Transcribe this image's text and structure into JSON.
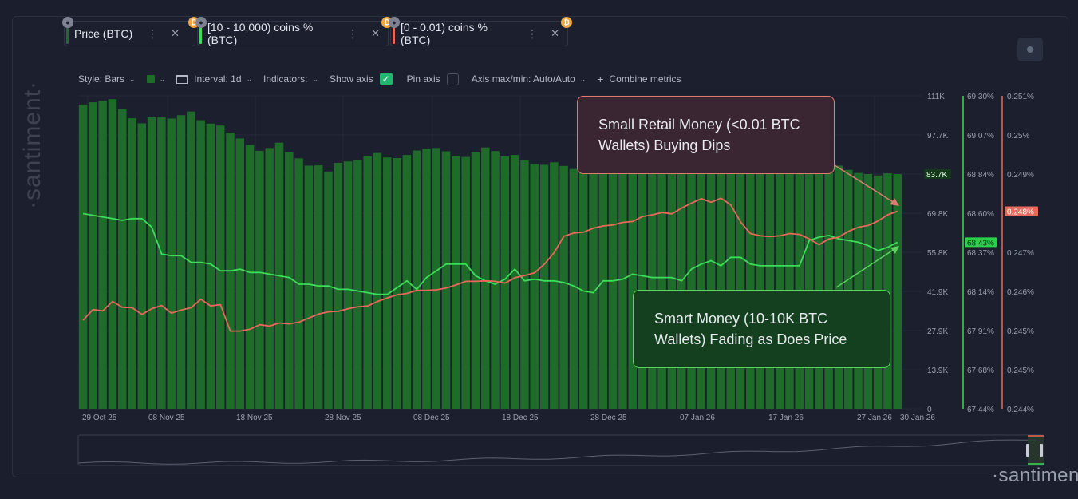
{
  "tabs": [
    {
      "label": "Price (BTC)",
      "bar_color": "#1e6b2a",
      "lock": "●",
      "coin": "₿",
      "menu": "⋮",
      "close": "✕"
    },
    {
      "label": "[10 - 10,000) coins % (BTC)",
      "bar_color": "#3ddc5a",
      "lock": "●",
      "coin": "₿",
      "menu": "⋮",
      "close": "✕"
    },
    {
      "label": "[0 - 0.01) coins % (BTC)",
      "bar_color": "#e8685a",
      "lock": "●",
      "coin": "₿",
      "menu": "⋮",
      "close": "✕"
    }
  ],
  "toolbar": {
    "style": "Style: Bars",
    "interval": "Interval: 1d",
    "indicators": "Indicators:",
    "show_axis": "Show axis",
    "pin_axis": "Pin axis",
    "axis_maxmin": "Axis max/min: Auto/Auto",
    "combine": "Combine metrics",
    "chevron": "⌄",
    "check": "✓",
    "plus": "+"
  },
  "watermark": "·santiment·",
  "watermark_bottom": "·santiment",
  "callouts": {
    "retail": "Small Retail Money (<0.01 BTC Wallets) Buying Dips",
    "smart": "Smart Money (10-10K BTC Wallets) Fading as Does Price"
  },
  "chart_data": {
    "type": "bar",
    "x_ticks": [
      "29 Oct 25",
      "08 Nov 25",
      "18 Nov 25",
      "28 Nov 25",
      "08 Dec 25",
      "18 Dec 25",
      "28 Dec 25",
      "07 Jan 26",
      "17 Jan 26",
      "27 Jan 26",
      "30 Jan 26"
    ],
    "axes": {
      "price": {
        "ticks": [
          "111K",
          "97.7K",
          "83.7K",
          "69.8K",
          "55.8K",
          "41.9K",
          "27.9K",
          "13.9K",
          "0"
        ],
        "range": [
          0,
          111600
        ],
        "current_label": "83.7K",
        "color": "#1e6b2a"
      },
      "smart": {
        "ticks": [
          "69.30%",
          "69.07%",
          "68.84%",
          "68.60%",
          "68.37%",
          "68.14%",
          "67.91%",
          "67.68%",
          "67.44%"
        ],
        "range": [
          67.44,
          69.3
        ],
        "current_label": "68.43%",
        "color": "#3ddc5a"
      },
      "retail": {
        "ticks": [
          "0.251%",
          "0.25%",
          "0.249%",
          "0.248%",
          "0.247%",
          "0.246%",
          "0.245%",
          "0.245%",
          "0.244%"
        ],
        "range": [
          0.244,
          0.251
        ],
        "current_label": "0.248%",
        "color": "#e8685a"
      }
    },
    "series": [
      {
        "name": "Price (BTC)",
        "type": "bar",
        "axis": "price",
        "color": "#1e6b2a",
        "values": [
          108500,
          109300,
          109800,
          110400,
          106800,
          103600,
          101800,
          104000,
          104200,
          103500,
          104700,
          106000,
          102900,
          101700,
          101000,
          98500,
          96400,
          94100,
          92000,
          93000,
          94900,
          91500,
          89300,
          86700,
          86800,
          84600,
          87700,
          88200,
          88800,
          90000,
          91200,
          89600,
          89400,
          90500,
          92100,
          92700,
          93000,
          91800,
          90000,
          89800,
          91500,
          93200,
          91900,
          90000,
          90500,
          88600,
          87200,
          87000,
          87900,
          86600,
          85500,
          86400,
          87400,
          88100,
          88000,
          86900,
          87600,
          87800,
          88900,
          90300,
          91300,
          93800,
          93400,
          92600,
          94500,
          95300,
          96400,
          95100,
          93100,
          92600,
          91600,
          89300,
          88500,
          89100,
          89800,
          88000,
          87300,
          86700,
          85200,
          84100,
          83700,
          83200,
          84000,
          83700
        ]
      },
      {
        "name": "[10 - 10,000) coins % (BTC)",
        "type": "line",
        "axis": "smart",
        "color": "#3ddc5a",
        "values": [
          68.6,
          68.59,
          68.58,
          68.57,
          68.56,
          68.57,
          68.57,
          68.52,
          68.36,
          68.35,
          68.35,
          68.31,
          68.31,
          68.3,
          68.26,
          68.26,
          68.27,
          68.25,
          68.25,
          68.24,
          68.23,
          68.22,
          68.18,
          68.18,
          68.17,
          68.17,
          68.15,
          68.15,
          68.14,
          68.13,
          68.12,
          68.12,
          68.16,
          68.2,
          68.15,
          68.22,
          68.26,
          68.3,
          68.3,
          68.3,
          68.23,
          68.2,
          68.18,
          68.21,
          68.27,
          68.2,
          68.21,
          68.2,
          68.2,
          68.19,
          68.17,
          68.14,
          68.13,
          68.2,
          68.2,
          68.21,
          68.24,
          68.23,
          68.22,
          68.22,
          68.22,
          68.2,
          68.27,
          68.3,
          68.32,
          68.29,
          68.34,
          68.34,
          68.3,
          68.29,
          68.29,
          68.29,
          68.29,
          68.29,
          68.44,
          68.46,
          68.47,
          68.45,
          68.44,
          68.43,
          68.41,
          68.38,
          68.4,
          68.43
        ]
      },
      {
        "name": "[0 - 0.01) coins % (BTC)",
        "type": "line",
        "axis": "retail",
        "color": "#e8685a",
        "values": [
          0.24598,
          0.24622,
          0.24619,
          0.2464,
          0.24627,
          0.24626,
          0.24611,
          0.24624,
          0.24631,
          0.24614,
          0.24621,
          0.24626,
          0.24645,
          0.2463,
          0.24633,
          0.24574,
          0.24574,
          0.24578,
          0.24588,
          0.24585,
          0.24592,
          0.2459,
          0.24594,
          0.24603,
          0.24612,
          0.24617,
          0.24618,
          0.24624,
          0.24628,
          0.2463,
          0.2464,
          0.24648,
          0.24655,
          0.24658,
          0.24665,
          0.24665,
          0.24666,
          0.2467,
          0.24677,
          0.24685,
          0.24685,
          0.24686,
          0.24685,
          0.24681,
          0.24693,
          0.24698,
          0.24704,
          0.24723,
          0.24749,
          0.24786,
          0.24793,
          0.24795,
          0.24804,
          0.24809,
          0.24811,
          0.24817,
          0.24819,
          0.2483,
          0.24834,
          0.24839,
          0.24836,
          0.24849,
          0.2486,
          0.2487,
          0.24862,
          0.24871,
          0.24856,
          0.24818,
          0.24792,
          0.24787,
          0.24785,
          0.24787,
          0.24792,
          0.2479,
          0.2478,
          0.24767,
          0.2478,
          0.24784,
          0.24797,
          0.24806,
          0.2481,
          0.2482,
          0.24834,
          0.24842
        ]
      }
    ]
  }
}
